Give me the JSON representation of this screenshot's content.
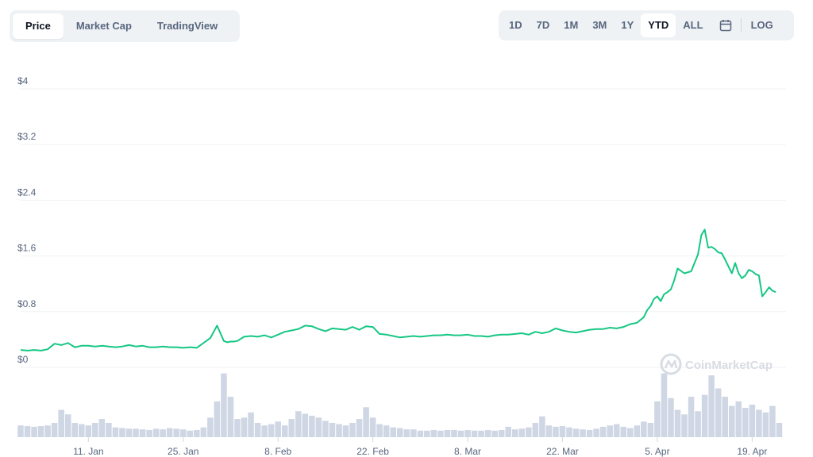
{
  "tabs": [
    {
      "label": "Price",
      "active": true
    },
    {
      "label": "Market Cap",
      "active": false
    },
    {
      "label": "TradingView",
      "active": false
    }
  ],
  "ranges": [
    {
      "label": "1D",
      "active": false
    },
    {
      "label": "7D",
      "active": false
    },
    {
      "label": "1M",
      "active": false
    },
    {
      "label": "3M",
      "active": false
    },
    {
      "label": "1Y",
      "active": false
    },
    {
      "label": "YTD",
      "active": true
    },
    {
      "label": "ALL",
      "active": false
    }
  ],
  "calendar_icon": "calendar-icon",
  "log_label": "LOG",
  "watermark": {
    "text": "CoinMarketCap",
    "icon": "coinmarketcap-logo-icon"
  },
  "colors": {
    "line": "#16c784",
    "volume": "#cfd6e4",
    "grid": "#eff2f5",
    "text": "#58667e",
    "active_text": "#0d1421"
  },
  "chart_data": {
    "type": "line",
    "title": "",
    "xlabel": "",
    "ylabel": "",
    "y_tick_labels": [
      "$0",
      "$0.8",
      "$1.6",
      "$2.4",
      "$3.2",
      "$4"
    ],
    "y_tick_values": [
      0,
      0.8,
      1.6,
      2.4,
      3.2,
      4.0
    ],
    "ylim": [
      0,
      4.0
    ],
    "x_tick_labels": [
      "11. Jan",
      "25. Jan",
      "8. Feb",
      "22. Feb",
      "8. Mar",
      "22. Mar",
      "5. Apr",
      "19. Apr"
    ],
    "x_tick_days": [
      10,
      24,
      38,
      52,
      66,
      80,
      94,
      108
    ],
    "xlim_days": [
      0,
      113
    ],
    "grid": true,
    "legend": "none",
    "series": [
      {
        "values_x_days": [
          0,
          1,
          2,
          3,
          4,
          5,
          6,
          7,
          8,
          9,
          10,
          11,
          12,
          13,
          14,
          15,
          16,
          17,
          18,
          19,
          20,
          21,
          22,
          23,
          24,
          25,
          26,
          27,
          28,
          29,
          30,
          30.5,
          31,
          31.5,
          32,
          33,
          34,
          35,
          36,
          37,
          38,
          39,
          40,
          41,
          42,
          43,
          44,
          45,
          46,
          47,
          48,
          49,
          50,
          51,
          52,
          53,
          54,
          55,
          56,
          57,
          58,
          59,
          60,
          61,
          62,
          63,
          64,
          65,
          66,
          67,
          68,
          69,
          70,
          71,
          72,
          73,
          74,
          75,
          76,
          77,
          78,
          79,
          80,
          81,
          82,
          83,
          84,
          85,
          86,
          87,
          88,
          89,
          90,
          91,
          92,
          92.5,
          93,
          93.5,
          94,
          94.5,
          95,
          95.5,
          96,
          96.5,
          97,
          98,
          99,
          100,
          100.5,
          101,
          101.5,
          102,
          102.5,
          103,
          103.5,
          104,
          104.5,
          105,
          105.5,
          106,
          106.5,
          107,
          107.5,
          108,
          108.5,
          109,
          109.5,
          110,
          110.5,
          111,
          111.5,
          112,
          112.5
        ],
        "values_y": [
          0.25,
          0.24,
          0.25,
          0.24,
          0.26,
          0.34,
          0.32,
          0.35,
          0.29,
          0.31,
          0.31,
          0.3,
          0.31,
          0.3,
          0.29,
          0.3,
          0.32,
          0.3,
          0.31,
          0.29,
          0.29,
          0.3,
          0.29,
          0.29,
          0.28,
          0.29,
          0.28,
          0.35,
          0.42,
          0.6,
          0.38,
          0.36,
          0.37,
          0.37,
          0.38,
          0.44,
          0.45,
          0.44,
          0.46,
          0.43,
          0.47,
          0.51,
          0.53,
          0.55,
          0.6,
          0.59,
          0.55,
          0.52,
          0.56,
          0.55,
          0.54,
          0.58,
          0.54,
          0.59,
          0.58,
          0.48,
          0.47,
          0.45,
          0.43,
          0.44,
          0.45,
          0.44,
          0.45,
          0.46,
          0.46,
          0.47,
          0.46,
          0.46,
          0.47,
          0.45,
          0.45,
          0.44,
          0.46,
          0.47,
          0.47,
          0.48,
          0.49,
          0.47,
          0.51,
          0.49,
          0.51,
          0.56,
          0.53,
          0.51,
          0.5,
          0.52,
          0.54,
          0.55,
          0.55,
          0.57,
          0.56,
          0.58,
          0.62,
          0.64,
          0.72,
          0.82,
          0.88,
          0.98,
          1.02,
          0.95,
          1.05,
          1.08,
          1.12,
          1.25,
          1.42,
          1.35,
          1.38,
          1.62,
          1.9,
          1.98,
          1.72,
          1.73,
          1.7,
          1.65,
          1.64,
          1.55,
          1.45,
          1.35,
          1.5,
          1.35,
          1.28,
          1.32,
          1.4,
          1.38,
          1.34,
          1.32,
          1.02,
          1.08,
          1.15,
          1.1,
          1.08
        ]
      }
    ],
    "volume": {
      "x_days": [
        0,
        1,
        2,
        3,
        4,
        5,
        6,
        7,
        8,
        9,
        10,
        11,
        12,
        13,
        14,
        15,
        16,
        17,
        18,
        19,
        20,
        21,
        22,
        23,
        24,
        25,
        26,
        27,
        28,
        29,
        30,
        31,
        32,
        33,
        34,
        35,
        36,
        37,
        38,
        39,
        40,
        41,
        42,
        43,
        44,
        45,
        46,
        47,
        48,
        49,
        50,
        51,
        52,
        53,
        54,
        55,
        56,
        57,
        58,
        59,
        60,
        61,
        62,
        63,
        64,
        65,
        66,
        67,
        68,
        69,
        70,
        71,
        72,
        73,
        74,
        75,
        76,
        77,
        78,
        79,
        80,
        81,
        82,
        83,
        84,
        85,
        86,
        87,
        88,
        89,
        90,
        91,
        92,
        93,
        94,
        95,
        96,
        97,
        98,
        99,
        100,
        101,
        102,
        103,
        104,
        105,
        106,
        107,
        108,
        109,
        110,
        111,
        112
      ],
      "values": [
        0.18,
        0.17,
        0.16,
        0.17,
        0.18,
        0.22,
        0.42,
        0.35,
        0.22,
        0.2,
        0.18,
        0.22,
        0.28,
        0.22,
        0.15,
        0.14,
        0.13,
        0.13,
        0.12,
        0.11,
        0.13,
        0.12,
        0.14,
        0.13,
        0.12,
        0.1,
        0.11,
        0.15,
        0.3,
        0.55,
        0.98,
        0.62,
        0.28,
        0.3,
        0.38,
        0.22,
        0.18,
        0.2,
        0.24,
        0.18,
        0.28,
        0.4,
        0.36,
        0.33,
        0.3,
        0.25,
        0.22,
        0.2,
        0.18,
        0.22,
        0.28,
        0.46,
        0.3,
        0.2,
        0.18,
        0.15,
        0.14,
        0.12,
        0.12,
        0.1,
        0.1,
        0.11,
        0.1,
        0.11,
        0.11,
        0.1,
        0.11,
        0.1,
        0.1,
        0.11,
        0.1,
        0.11,
        0.16,
        0.12,
        0.13,
        0.15,
        0.22,
        0.32,
        0.18,
        0.16,
        0.17,
        0.15,
        0.13,
        0.12,
        0.11,
        0.13,
        0.16,
        0.18,
        0.2,
        0.16,
        0.14,
        0.18,
        0.24,
        0.22,
        0.55,
        0.98,
        0.6,
        0.42,
        0.35,
        0.62,
        0.4,
        0.65,
        0.95,
        0.75,
        0.62,
        0.48,
        0.55,
        0.45,
        0.5,
        0.42,
        0.38,
        0.48,
        0.22
      ]
    }
  }
}
